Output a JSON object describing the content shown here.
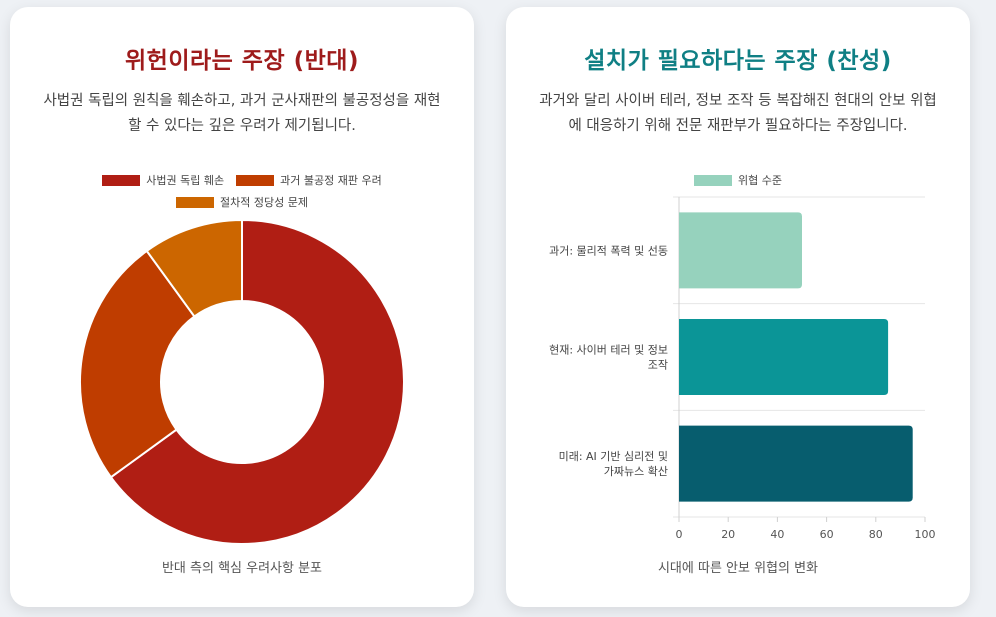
{
  "left_card": {
    "title": "위헌이라는 주장 (반대)",
    "description": "사법권 독립의 원칙을 훼손하고, 과거 군사재판의 불공정성을 재현할 수 있다는 깊은 우려가 제기됩니다.",
    "caption": "반대 측의 핵심 우려사항 분포"
  },
  "right_card": {
    "title": "설치가 필요하다는 주장 (찬성)",
    "description": "과거와 달리 사이버 테러, 정보 조작 등 복잡해진 현대의 안보 위협에 대응하기 위해 전문 재판부가 필요하다는 주장입니다.",
    "caption": "시대에 따른 안보 위협의 변화"
  },
  "chart_data": [
    {
      "type": "pie",
      "donut": true,
      "labels": [
        "사법권 독립 훼손",
        "과거 불공정 재판 우려",
        "절차적 정당성 문제"
      ],
      "values": [
        65,
        25,
        10
      ],
      "colors": [
        "#b01e14",
        "#bf3d00",
        "#cc6600"
      ],
      "legend_position": "top"
    },
    {
      "type": "bar",
      "orientation": "horizontal",
      "categories": [
        [
          "과거: 물리적 폭력 및 선동"
        ],
        [
          "현재: 사이버 테러 및 정보",
          "조작"
        ],
        [
          "미래: AI 기반 심리전 및",
          "가짜뉴스 확산"
        ]
      ],
      "series": [
        {
          "name": "위협 수준",
          "values": [
            50,
            85,
            95
          ]
        }
      ],
      "colors": [
        "#96d2bd",
        "#0b9597",
        "#075d6e"
      ],
      "xlim": [
        0,
        100
      ],
      "xticks": [
        0,
        20,
        40,
        60,
        80,
        100
      ],
      "grid": true,
      "legend_position": "top"
    }
  ]
}
